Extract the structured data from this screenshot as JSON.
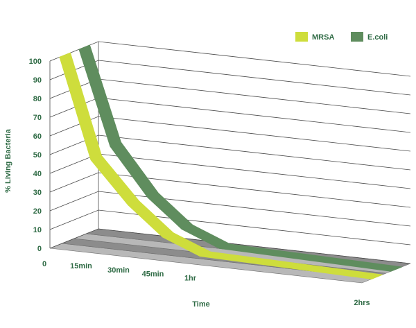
{
  "chart_data": {
    "type": "line",
    "title": "",
    "xlabel": "Time",
    "ylabel": "% Living Bacteria",
    "ylim": [
      0,
      100
    ],
    "y_ticks": [
      "0",
      "10",
      "20",
      "30",
      "40",
      "50",
      "60",
      "70",
      "80",
      "90",
      "100"
    ],
    "x_ticks": [
      "0",
      "15min",
      "30min",
      "45min",
      "1hr",
      "2hrs"
    ],
    "x_minutes": [
      0,
      15,
      30,
      45,
      60,
      120
    ],
    "legend_position": "top-right",
    "grid": true,
    "three_d": true,
    "series": [
      {
        "name": "MRSA",
        "color": "#cedd3c",
        "values": [
          100,
          47,
          25,
          10,
          2,
          0
        ]
      },
      {
        "name": "E.coli",
        "color": "#5f8d5e",
        "values": [
          100,
          50,
          25,
          10,
          2,
          0
        ]
      }
    ]
  }
}
